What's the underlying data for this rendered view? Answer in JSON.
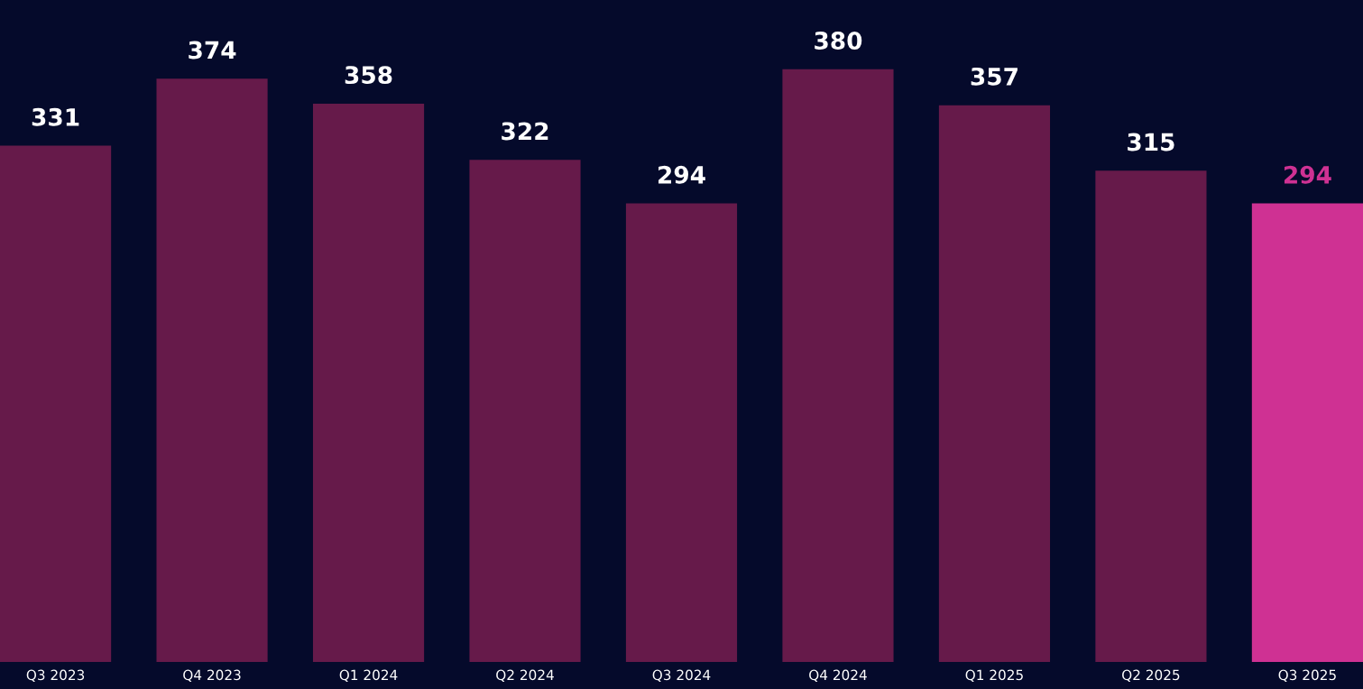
{
  "chart_data": {
    "type": "bar",
    "categories": [
      "Q3 2023",
      "Q4 2023",
      "Q1 2024",
      "Q2 2024",
      "Q3 2024",
      "Q4 2024",
      "Q1 2025",
      "Q2 2025",
      "Q3 2025"
    ],
    "values": [
      331,
      374,
      358,
      322,
      294,
      380,
      357,
      315,
      294
    ],
    "color": "#661a4a",
    "colors": [
      "#661a4a",
      "#661a4a",
      "#661a4a",
      "#661a4a",
      "#661a4a",
      "#661a4a",
      "#661a4a",
      "#661a4a",
      "#cf3193"
    ],
    "data_labels": true,
    "grid": false,
    "legend": false
  }
}
